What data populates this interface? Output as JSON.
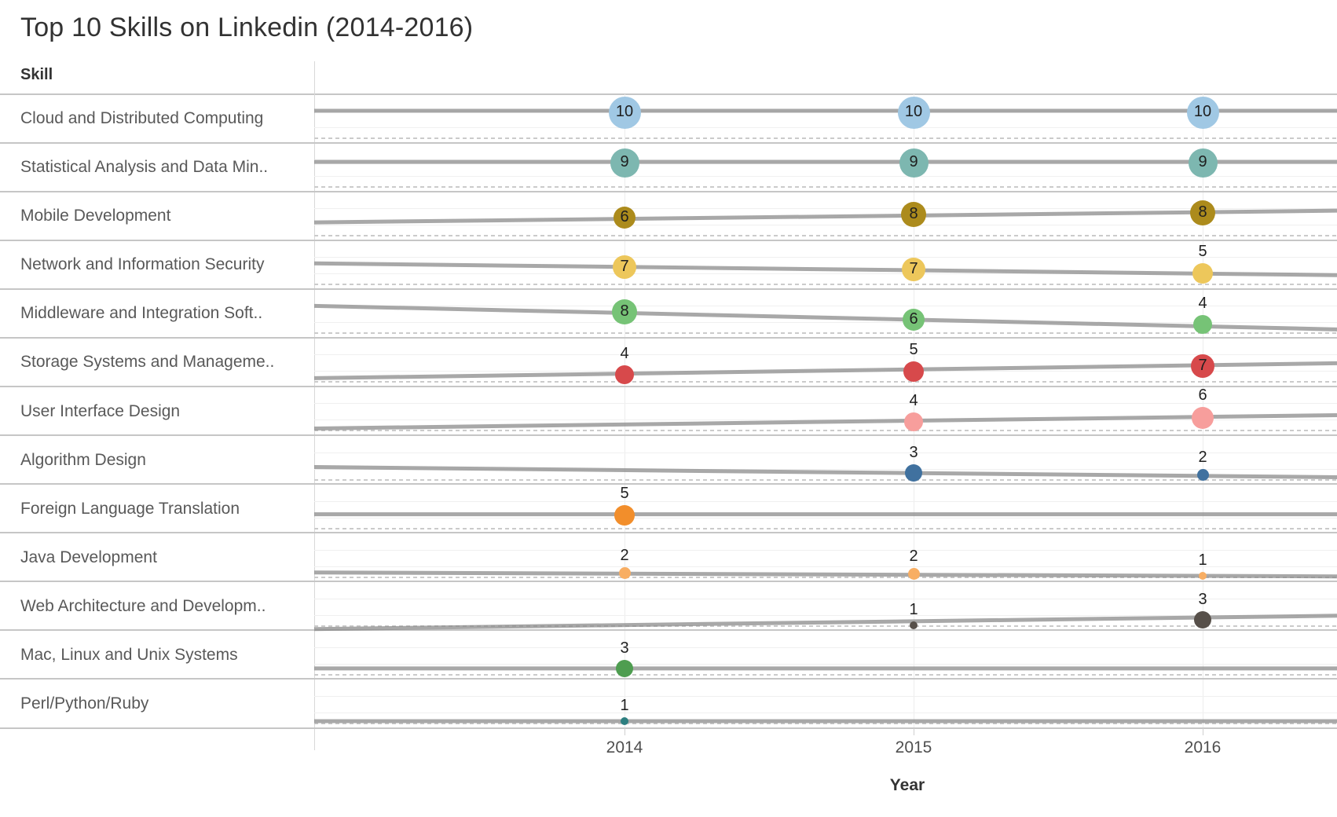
{
  "title": "Top 10 Skills on Linkedin (2014-2016)",
  "table": {
    "skill_header": "Skill"
  },
  "x_axis": {
    "label": "Year",
    "ticks": [
      "2014",
      "2015",
      "2016"
    ]
  },
  "chart_data": {
    "type": "scatter",
    "subtype": "bubble-matrix-with-trend-lines",
    "x": [
      2014,
      2015,
      2016
    ],
    "xlabel": "Year",
    "row_header": "Skill",
    "value_meaning": "rank score shown as bubble size and printed number",
    "trendline_color": "#878787",
    "label_color": "#1f1f1f",
    "rows": [
      {
        "skill": "Cloud and Distributed Computing",
        "values": [
          10,
          10,
          10
        ],
        "color": "#A0C8E4",
        "line": [
          21,
          21
        ],
        "bubble_y": [
          23,
          23,
          23
        ]
      },
      {
        "skill": "Statistical Analysis and Data Min..",
        "values": [
          9,
          9,
          9
        ],
        "color": "#7DB7B0",
        "line": [
          24,
          24
        ],
        "bubble_y": [
          25,
          25,
          25
        ]
      },
      {
        "skill": "Mobile Development",
        "values": [
          6,
          8,
          8
        ],
        "color": "#AC8B1C",
        "line": [
          39,
          24
        ],
        "bubble_y": [
          33,
          29,
          27
        ]
      },
      {
        "skill": "Network and Information Security",
        "values": [
          7,
          7,
          5
        ],
        "color": "#EDC75B",
        "line": [
          29,
          44
        ],
        "bubble_y": [
          34,
          37,
          42
        ]
      },
      {
        "skill": "Middleware and Integration Soft..",
        "values": [
          8,
          6,
          4
        ],
        "color": "#76C376",
        "line": [
          21,
          51
        ],
        "bubble_y": [
          29,
          39,
          45
        ]
      },
      {
        "skill": "Storage Systems and Manageme..",
        "values": [
          4,
          5,
          7
        ],
        "color": "#D7494B",
        "line": [
          51,
          32
        ],
        "bubble_y": [
          47,
          43,
          36
        ]
      },
      {
        "skill": "User Interface Design",
        "values": [
          null,
          4,
          6
        ],
        "color": "#F79E9C",
        "line": [
          53,
          36
        ],
        "bubble_y": [
          null,
          45,
          40
        ],
        "labels_above": true
      },
      {
        "skill": "Algorithm Design",
        "values": [
          null,
          3,
          2
        ],
        "color": "#40719F",
        "line": [
          40,
          53
        ],
        "bubble_y": [
          null,
          47,
          50
        ]
      },
      {
        "skill": "Foreign Language Translation",
        "values": [
          5,
          null,
          null
        ],
        "color": "#F28E2B",
        "line": [
          38,
          38
        ],
        "bubble_y": [
          39,
          null,
          null
        ]
      },
      {
        "skill": "Java Development",
        "values": [
          2,
          2,
          1
        ],
        "color": "#F8AE63",
        "line": [
          50,
          55
        ],
        "bubble_y": [
          51,
          52,
          54
        ]
      },
      {
        "skill": "Web Architecture and Developm..",
        "values": [
          null,
          1,
          3
        ],
        "color": "#57504A",
        "line": [
          60,
          43
        ],
        "bubble_y": [
          null,
          55,
          48
        ]
      },
      {
        "skill": "Mac, Linux and Unix Systems",
        "values": [
          3,
          null,
          null
        ],
        "color": "#4E9D50",
        "line": [
          48,
          48
        ],
        "bubble_y": [
          48,
          null,
          null
        ]
      },
      {
        "skill": "Perl/Python/Ruby",
        "values": [
          1,
          null,
          null
        ],
        "color": "#2D7F80",
        "line": [
          53,
          53
        ],
        "bubble_y": [
          53,
          null,
          null
        ]
      }
    ]
  }
}
